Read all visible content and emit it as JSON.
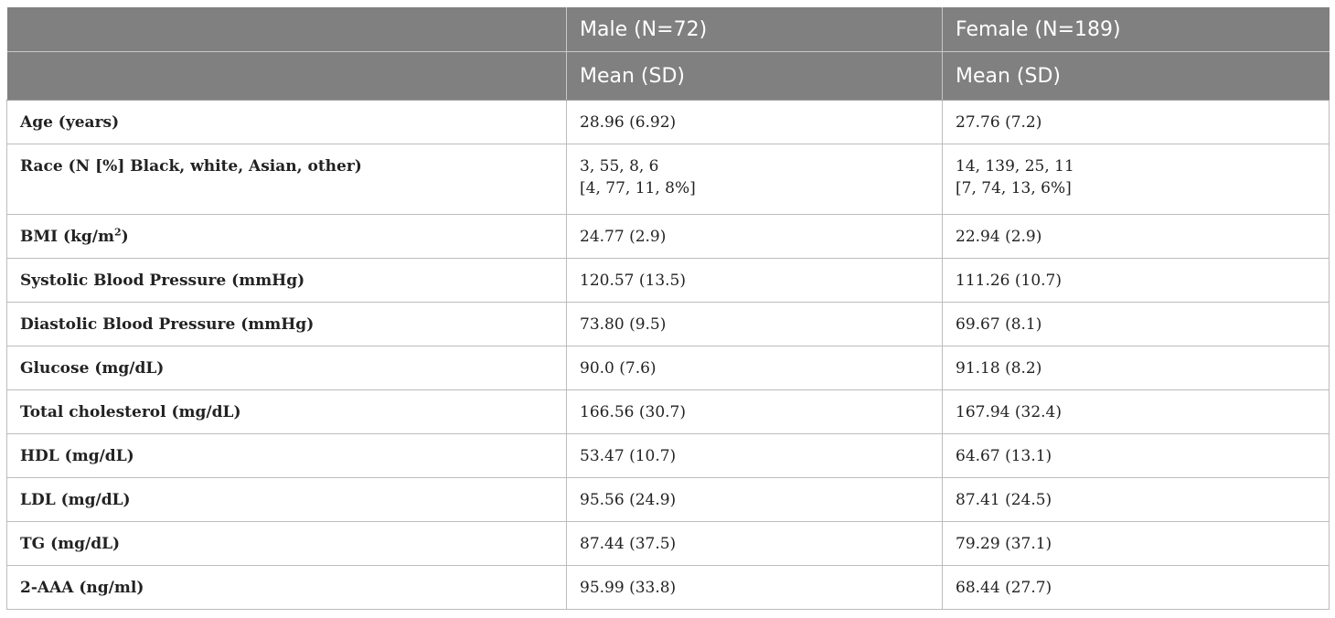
{
  "table": {
    "header": {
      "row1": [
        "",
        "Male (N=72)",
        "Female (N=189)"
      ],
      "row2": [
        "",
        "Mean (SD)",
        "Mean (SD)"
      ]
    },
    "rows": [
      {
        "label": "Age (years)",
        "male": "28.96 (6.92)",
        "female": "27.76 (7.2)"
      },
      {
        "label": "Race (N [%] Black, white, Asian, other)",
        "male_line1": "3, 55, 8, 6",
        "male_line2": "[4, 77, 11, 8%]",
        "female_line1": "14, 139, 25, 11",
        "female_line2": "[7, 74, 13, 6%]"
      },
      {
        "label_prefix": "BMI (kg/m",
        "label_sup": "2",
        "label_suffix": ")",
        "male": "24.77 (2.9)",
        "female": "22.94 (2.9)"
      },
      {
        "label": "Systolic Blood Pressure (mmHg)",
        "male": "120.57 (13.5)",
        "female": "111.26 (10.7)"
      },
      {
        "label": "Diastolic Blood Pressure (mmHg)",
        "male": "73.80 (9.5)",
        "female": "69.67 (8.1)"
      },
      {
        "label": "Glucose (mg/dL)",
        "male": "90.0 (7.6)",
        "female": "91.18 (8.2)"
      },
      {
        "label": "Total cholesterol (mg/dL)",
        "male": "166.56 (30.7)",
        "female": "167.94 (32.4)"
      },
      {
        "label": "HDL (mg/dL)",
        "male": "53.47 (10.7)",
        "female": "64.67 (13.1)"
      },
      {
        "label": "LDL (mg/dL)",
        "male": "95.56 (24.9)",
        "female": "87.41 (24.5)"
      },
      {
        "label": "TG (mg/dL)",
        "male": "87.44 (37.5)",
        "female": "79.29 (37.1)"
      },
      {
        "label": "2-AAA (ng/ml)",
        "male": "95.99 (33.8)",
        "female": "68.44 (27.7)"
      }
    ]
  },
  "colors": {
    "header_bg": "#808080",
    "header_text": "#ffffff",
    "border": "#bcbcbc"
  }
}
